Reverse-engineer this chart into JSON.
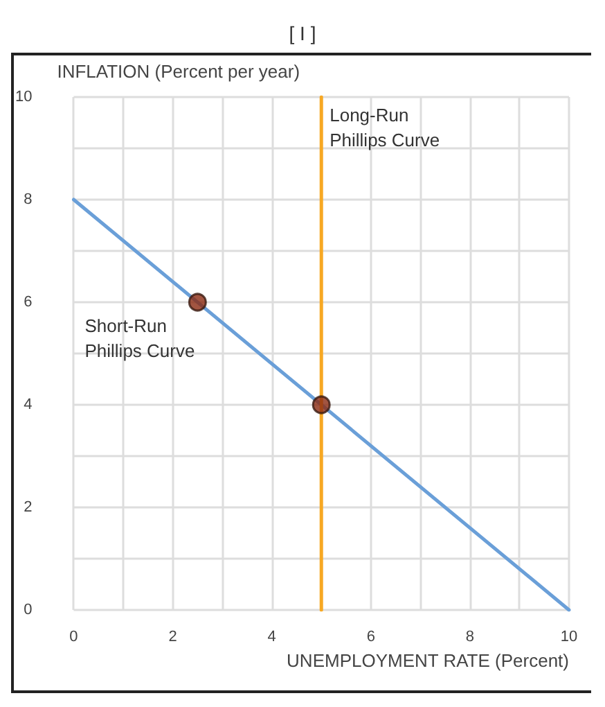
{
  "chart_data": {
    "type": "line",
    "title": "[ I ]",
    "xlabel": "UNEMPLOYMENT RATE (Percent)",
    "ylabel": "INFLATION (Percent per year)",
    "xlim": [
      0,
      10
    ],
    "ylim": [
      0,
      10
    ],
    "xticks": [
      0,
      {
        "value": 1,
        "label": null
      },
      2,
      {
        "value": 3,
        "label": null
      },
      4,
      {
        "value": 5,
        "label": null
      },
      6,
      {
        "value": 7,
        "label": null
      },
      8,
      {
        "value": 9,
        "label": null
      },
      10
    ],
    "yticks": [
      0,
      {
        "value": 1,
        "label": null
      },
      2,
      {
        "value": 3,
        "label": null
      },
      4,
      {
        "value": 5,
        "label": null
      },
      6,
      {
        "value": 7,
        "label": null
      },
      8,
      {
        "value": 9,
        "label": null
      },
      10
    ],
    "grid": true,
    "legend": false,
    "marker": "none",
    "line_style": "solid",
    "series": [
      {
        "name": "Short-Run Phillips Curve",
        "color": "#6a9fd8",
        "x": [
          0,
          10
        ],
        "values": [
          8,
          0
        ]
      },
      {
        "name": "Long-Run Phillips Curve",
        "color": "#f7a823",
        "x": [
          5,
          5
        ],
        "values": [
          0,
          10
        ]
      },
      {
        "type": "scatter",
        "color": "#8b2a12",
        "marker": "circle",
        "x": [
          2.5,
          5
        ],
        "values": [
          6,
          4
        ]
      }
    ]
  }
}
